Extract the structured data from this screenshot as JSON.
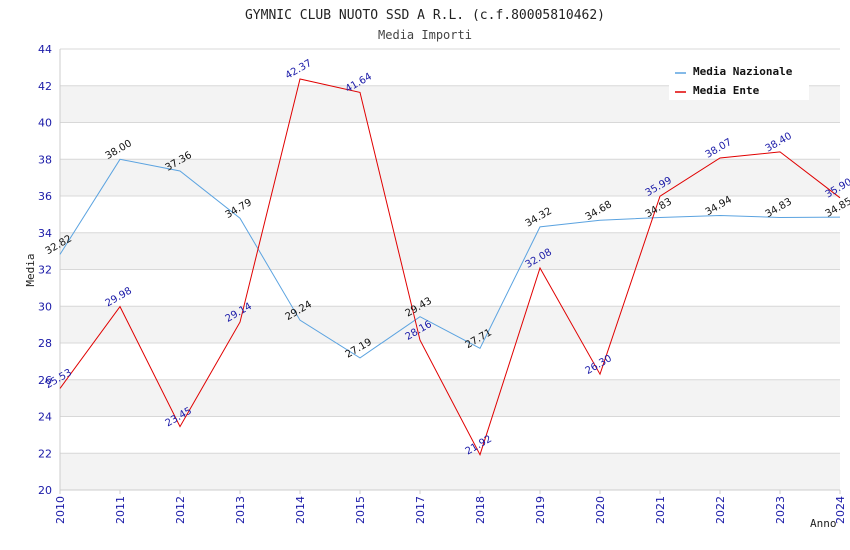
{
  "chart_data": {
    "type": "line",
    "title": "GYMNIC CLUB NUOTO SSD A R.L. (c.f.80005810462)",
    "subtitle": "Media Importi",
    "xlabel": "Anno",
    "ylabel": "Media",
    "ylim": [
      20,
      44
    ],
    "yticks": [
      20,
      22,
      24,
      26,
      28,
      30,
      32,
      34,
      36,
      38,
      40,
      42,
      44
    ],
    "categories": [
      "2010",
      "2011",
      "2012",
      "2013",
      "2014",
      "2015",
      "2017",
      "2018",
      "2019",
      "2020",
      "2021",
      "2022",
      "2023",
      "2024"
    ],
    "legend_position": "top-right",
    "grid": true,
    "series": [
      {
        "name": "Media Nazionale",
        "color": "#5ba3e0",
        "label_color": "#111111",
        "values": [
          32.82,
          38.0,
          37.36,
          34.79,
          29.24,
          27.19,
          29.43,
          27.71,
          34.32,
          34.68,
          34.83,
          34.94,
          34.83,
          34.85
        ],
        "labels": [
          "32.82",
          "38.00",
          "37.36",
          "34.79",
          "29.24",
          "27.19",
          "29.43",
          "27.71",
          "34.32",
          "34.68",
          "34.83",
          "34.94",
          "34.83",
          "34.85"
        ]
      },
      {
        "name": "Media Ente",
        "color": "#e00000",
        "label_color": "#1a1aa8",
        "values": [
          25.53,
          29.98,
          23.45,
          29.14,
          42.37,
          41.64,
          28.16,
          21.92,
          32.08,
          26.3,
          35.99,
          38.07,
          38.4,
          35.9
        ],
        "labels": [
          "25.53",
          "29.98",
          "23.45",
          "29.14",
          "42.37",
          "41.64",
          "28.16",
          "21.92",
          "32.08",
          "26.30",
          "35.99",
          "38.07",
          "38.40",
          "35.90"
        ]
      }
    ]
  }
}
